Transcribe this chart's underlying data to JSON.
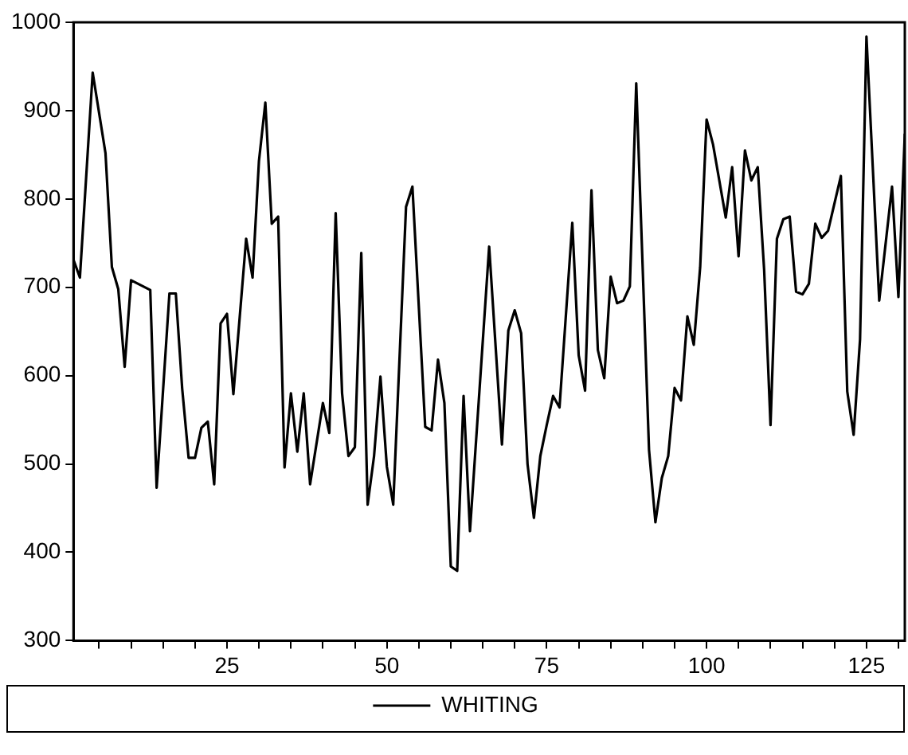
{
  "chart_data": {
    "type": "line",
    "legend": "bottom",
    "grid": false,
    "marker": "none",
    "line_style": "solid",
    "xlim": [
      1,
      131
    ],
    "ylim": [
      300,
      1000
    ],
    "xticks": [
      {
        "value": 5,
        "label": null
      },
      {
        "value": 10,
        "label": null
      },
      {
        "value": 15,
        "label": null
      },
      {
        "value": 20,
        "label": null
      },
      25,
      {
        "value": 30,
        "label": null
      },
      {
        "value": 35,
        "label": null
      },
      {
        "value": 40,
        "label": null
      },
      {
        "value": 45,
        "label": null
      },
      50,
      {
        "value": 55,
        "label": null
      },
      {
        "value": 60,
        "label": null
      },
      {
        "value": 65,
        "label": null
      },
      {
        "value": 70,
        "label": null
      },
      75,
      {
        "value": 80,
        "label": null
      },
      {
        "value": 85,
        "label": null
      },
      {
        "value": 90,
        "label": null
      },
      {
        "value": 95,
        "label": null
      },
      100,
      {
        "value": 105,
        "label": null
      },
      {
        "value": 110,
        "label": null
      },
      {
        "value": 115,
        "label": null
      },
      {
        "value": 120,
        "label": null
      },
      125,
      {
        "value": 130,
        "label": null
      }
    ],
    "yticks": [
      300,
      400,
      500,
      600,
      700,
      800,
      900,
      1000
    ],
    "series": [
      {
        "name": "WHITING",
        "color": "#000000",
        "x": [
          1,
          2,
          4,
          6,
          7,
          8,
          9,
          10,
          13,
          14,
          16,
          17,
          18,
          19,
          20,
          21,
          22,
          23,
          24,
          25,
          26,
          28,
          29,
          30,
          31,
          32,
          33,
          34,
          35,
          36,
          37,
          38,
          40,
          41,
          42,
          43,
          44,
          45,
          46,
          47,
          48,
          49,
          50,
          51,
          53,
          54,
          56,
          57,
          58,
          59,
          60,
          61,
          62,
          63,
          66,
          68,
          69,
          70,
          71,
          72,
          73,
          74,
          75,
          76,
          77,
          79,
          80,
          81,
          82,
          83,
          84,
          85,
          86,
          87,
          88,
          89,
          91,
          92,
          93,
          94,
          95,
          96,
          97,
          98,
          99,
          100,
          101,
          103,
          104,
          105,
          106,
          107,
          108,
          109,
          110,
          111,
          112,
          113,
          114,
          115,
          116,
          117,
          118,
          119,
          121,
          122,
          123,
          124,
          125,
          127,
          129,
          130,
          131
        ],
        "values": [
          731,
          711,
          943,
          852,
          723,
          698,
          610,
          708,
          697,
          473,
          693,
          693,
          585,
          507,
          507,
          541,
          548,
          477,
          659,
          670,
          579,
          755,
          711,
          843,
          909,
          772,
          780,
          496,
          580,
          514,
          580,
          477,
          569,
          535,
          784,
          580,
          509,
          519,
          739,
          454,
          509,
          599,
          497,
          454,
          791,
          814,
          542,
          538,
          618,
          569,
          384,
          379,
          577,
          424,
          746,
          522,
          651,
          674,
          648,
          500,
          439,
          509,
          544,
          577,
          564,
          773,
          623,
          583,
          810,
          629,
          597,
          712,
          682,
          685,
          701,
          931,
          516,
          434,
          484,
          509,
          586,
          572,
          667,
          635,
          723,
          890,
          862,
          779,
          836,
          735,
          855,
          821,
          836,
          720,
          544,
          755,
          777,
          780,
          695,
          692,
          704,
          772,
          756,
          764,
          826,
          582,
          533,
          641,
          984,
          685,
          814,
          689,
          874
        ]
      }
    ]
  }
}
